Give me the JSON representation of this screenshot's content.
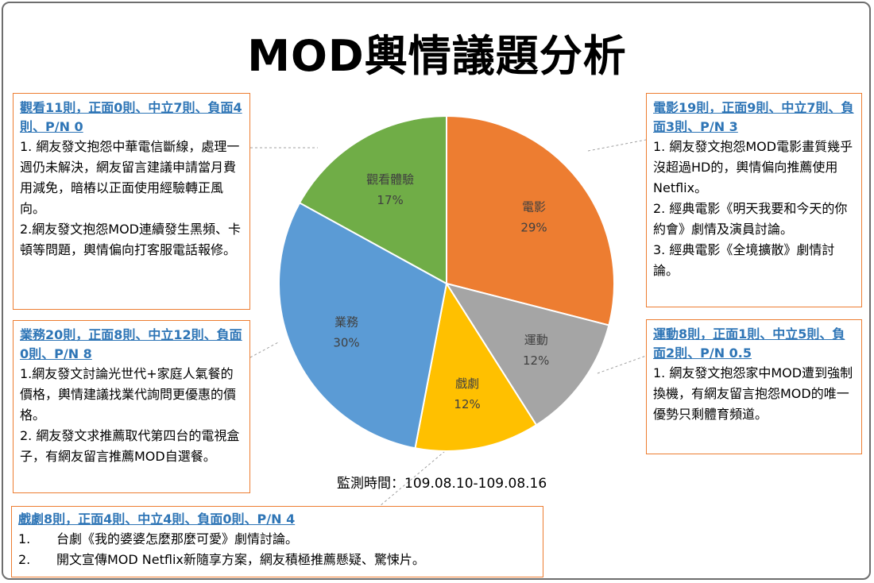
{
  "title": "MOD輿情議題分析",
  "monitor_period": "監測時間：109.08.10-109.08.16",
  "chart_data": {
    "type": "pie",
    "slices": [
      {
        "name": "電影",
        "percent": 29,
        "label": "29%",
        "color": "#ed7d31"
      },
      {
        "name": "運動",
        "percent": 12,
        "label": "12%",
        "color": "#a5a5a5"
      },
      {
        "name": "戲劇",
        "percent": 12,
        "label": "12%",
        "color": "#ffc000"
      },
      {
        "name": "業務",
        "percent": 30,
        "label": "30%",
        "color": "#5b9bd5"
      },
      {
        "name": "觀看體驗",
        "percent": 17,
        "label": "17%",
        "color": "#70ad47"
      }
    ]
  },
  "boxes": {
    "watch": {
      "heading": "觀看11則，正面0則、中立7則、負面4則、P/N 0",
      "items": [
        "1. 網友發文抱怨中華電信斷線，處理一週仍未解決，網友留言建議申請當月費用減免，暗樁以正面使用經驗轉正風向。",
        "2.網友發文抱怨MOD連續發生黑頻、卡頓等問題，輿情偏向打客服電話報修。"
      ]
    },
    "business": {
      "heading": "業務20則，正面8則、中立12則、負面0則、P/N 8",
      "items": [
        "1.網友發文討論光世代+家庭人氣餐的價格，輿情建議找業代詢問更優惠的價格。",
        "2. 網友發文求推薦取代第四台的電視盒子，有網友留言推薦MOD自選餐。"
      ]
    },
    "movie": {
      "heading": "電影19則，正面9則、中立7則、負面3則、P/N 3",
      "items": [
        "1. 網友發文抱怨MOD電影畫質幾乎沒超過HD的，輿情偏向推薦使用Netflix。",
        "2. 經典電影《明天我要和今天的你約會》劇情及演員討論。",
        "3. 經典電影《全境擴散》劇情討論。"
      ]
    },
    "sports": {
      "heading": "運動8則，正面1則、中立5則、負面2則、P/N 0.5",
      "items": [
        "1. 網友發文抱怨家中MOD遭到強制換機，有網友留言抱怨MOD的唯一優勢只剩體育頻道。"
      ]
    },
    "drama": {
      "heading": "戲劇8則，正面4則、中立4則、負面0則、P/N 4",
      "items": [
        {
          "num": "1.",
          "text": "台劇《我的婆婆怎麼那麼可愛》劇情討論。"
        },
        {
          "num": "2.",
          "text": "開文宣傳MOD Netflix新隨享方案，網友積極推薦懸疑、驚悚片。"
        }
      ]
    }
  }
}
